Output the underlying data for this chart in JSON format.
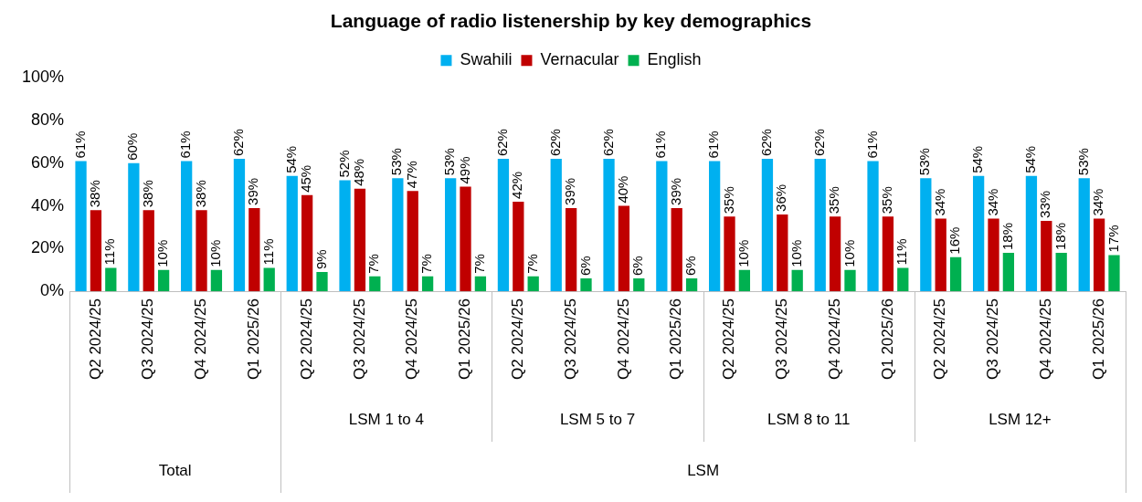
{
  "chart_data": {
    "type": "bar",
    "title": "Language of radio listenership by key demographics",
    "categories": [
      "Q2 2024/25",
      "Q3 2024/25",
      "Q4 2024/25",
      "Q1 2025/26",
      "Q2 2024/25",
      "Q3 2024/25",
      "Q4 2024/25",
      "Q1 2025/26",
      "Q2 2024/25",
      "Q3 2024/25",
      "Q4 2024/25",
      "Q1 2025/26",
      "Q2 2024/25",
      "Q3 2024/25",
      "Q4 2024/25",
      "Q1 2025/26",
      "Q2 2024/25",
      "Q3 2024/25",
      "Q4 2024/25",
      "Q1 2025/26"
    ],
    "series": [
      {
        "name": "Swahili",
        "color": "#00b0f0",
        "values": [
          61,
          60,
          61,
          62,
          54,
          52,
          53,
          53,
          62,
          62,
          62,
          61,
          61,
          62,
          62,
          61,
          53,
          54,
          54,
          53
        ],
        "value_labels": [
          "61%",
          "60%",
          "61%",
          "62%",
          "54%",
          "52%",
          "53%",
          "53%",
          "62%",
          "62%",
          "62%",
          "61%",
          "61%",
          "62%",
          "62%",
          "61%",
          "53%",
          "54%",
          "54%",
          "53%"
        ]
      },
      {
        "name": "Vernacular",
        "color": "#c00000",
        "values": [
          38,
          38,
          38,
          39,
          45,
          48,
          47,
          49,
          42,
          39,
          40,
          39,
          35,
          36,
          35,
          35,
          34,
          34,
          33,
          34
        ],
        "value_labels": [
          "38%",
          "38%",
          "38%",
          "39%",
          "45%",
          "48%",
          "47%",
          "49%",
          "42%",
          "39%",
          "40%",
          "39%",
          "35%",
          "36%",
          "35%",
          "35%",
          "34%",
          "34%",
          "33%",
          "34%"
        ]
      },
      {
        "name": "English",
        "color": "#00b050",
        "values": [
          11,
          10,
          10,
          11,
          9,
          7,
          7,
          7,
          7,
          6,
          6,
          6,
          10,
          10,
          10,
          11,
          16,
          18,
          18,
          17
        ],
        "value_labels": [
          "11%",
          "10%",
          "10%",
          "11%",
          "9%",
          "7%",
          "7%",
          "7%",
          "7%",
          "6%",
          "6%",
          "6%",
          "10%",
          "10%",
          "10%",
          "11%",
          "16%",
          "18%",
          "18%",
          "17%"
        ]
      }
    ],
    "ylim": [
      0,
      100
    ],
    "yticks": [
      {
        "value": 0,
        "label": "0%"
      },
      {
        "value": 20,
        "label": "20%"
      },
      {
        "value": 40,
        "label": "40%"
      },
      {
        "value": 60,
        "label": "60%"
      },
      {
        "value": 80,
        "label": "80%"
      },
      {
        "value": 100,
        "label": "100%"
      }
    ],
    "grid": false,
    "legend": "top",
    "annotations": [
      "LSM 1 to 4",
      "LSM 5 to 7",
      "LSM 8 to 11",
      "LSM 12+",
      "Total",
      "LSM"
    ]
  }
}
